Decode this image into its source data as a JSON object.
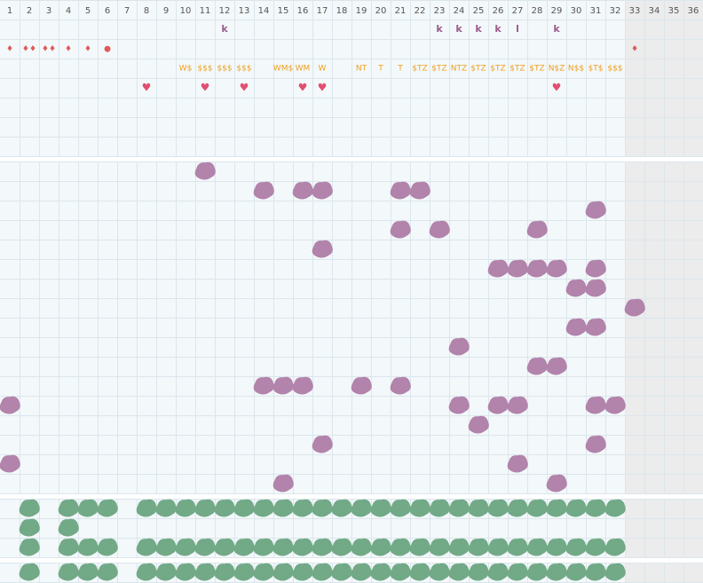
{
  "column_numbers": [
    1,
    2,
    3,
    4,
    5,
    6,
    7,
    8,
    9,
    10,
    11,
    12,
    13,
    14,
    15,
    16,
    17,
    18,
    19,
    20,
    21,
    22,
    23,
    24,
    25,
    26,
    27,
    28,
    29,
    30,
    31,
    32,
    33,
    34,
    35,
    36
  ],
  "top_panel": {
    "letters": [
      {
        "column": 12,
        "text": "k"
      },
      {
        "column": 23,
        "text": "k"
      },
      {
        "column": 24,
        "text": "k"
      },
      {
        "column": 25,
        "text": "k"
      },
      {
        "column": 26,
        "text": "k"
      },
      {
        "column": 27,
        "text": "l"
      },
      {
        "column": 29,
        "text": "k"
      }
    ],
    "drops": [
      {
        "column": 1,
        "text": "♦"
      },
      {
        "column": 2,
        "text": "♦♦"
      },
      {
        "column": 3,
        "text": "♦♦"
      },
      {
        "column": 4,
        "text": "♦"
      },
      {
        "column": 5,
        "text": "♦"
      },
      {
        "column": 6,
        "text": "●"
      },
      {
        "column": 33,
        "text": "♦"
      }
    ],
    "codes": [
      {
        "column": 10,
        "text": "W$"
      },
      {
        "column": 11,
        "text": "$$$"
      },
      {
        "column": 12,
        "text": "$$$"
      },
      {
        "column": 13,
        "text": "$$$"
      },
      {
        "column": 15,
        "text": "WM$"
      },
      {
        "column": 16,
        "text": "WM"
      },
      {
        "column": 17,
        "text": "W"
      },
      {
        "column": 19,
        "text": "NT"
      },
      {
        "column": 20,
        "text": "T"
      },
      {
        "column": 21,
        "text": "T"
      },
      {
        "column": 22,
        "text": "$TZ"
      },
      {
        "column": 23,
        "text": "$TZ"
      },
      {
        "column": 24,
        "text": "NTZ"
      },
      {
        "column": 25,
        "text": "$TZ"
      },
      {
        "column": 26,
        "text": "$TZ"
      },
      {
        "column": 27,
        "text": "$TZ"
      },
      {
        "column": 28,
        "text": "$TZ"
      },
      {
        "column": 29,
        "text": "N$Z"
      },
      {
        "column": 30,
        "text": "N$$"
      },
      {
        "column": 31,
        "text": "$T$"
      },
      {
        "column": 32,
        "text": "$$$"
      }
    ],
    "hearts": {
      "symbol": "♥",
      "columns": [
        8,
        11,
        13,
        16,
        17,
        29
      ]
    }
  },
  "purple_rows": [
    [
      11
    ],
    [
      14,
      16,
      17,
      21,
      22
    ],
    [
      31
    ],
    [
      21,
      23,
      28
    ],
    [
      17
    ],
    [
      26,
      27,
      28,
      29,
      31
    ],
    [
      30,
      31
    ],
    [
      33
    ],
    [
      30,
      31
    ],
    [
      24
    ],
    [
      28,
      29
    ],
    [
      14,
      15,
      16,
      19,
      21
    ],
    [
      1,
      24,
      26,
      27,
      31,
      32
    ],
    [
      25
    ],
    [
      17,
      31
    ],
    [
      1,
      27
    ],
    [
      15,
      29
    ]
  ],
  "green_rows": [
    [
      2,
      4,
      5,
      6,
      8,
      9,
      10,
      11,
      12,
      13,
      14,
      15,
      16,
      17,
      18,
      19,
      20,
      21,
      22,
      23,
      24,
      25,
      26,
      27,
      28,
      29,
      30,
      31,
      32
    ],
    [
      2,
      4
    ],
    [
      2,
      4,
      5,
      6,
      8,
      9,
      10,
      11,
      12,
      13,
      14,
      15,
      16,
      17,
      18,
      19,
      20,
      21,
      22,
      23,
      24,
      25,
      26,
      27,
      28,
      29,
      30,
      31,
      32
    ]
  ],
  "green_rows_bottom": [
    [
      2,
      4,
      5,
      6,
      8,
      9,
      10,
      11,
      12,
      13,
      14,
      15,
      16,
      17,
      18,
      19,
      20,
      21,
      22,
      23,
      24,
      25,
      26,
      27,
      28,
      29,
      30,
      31,
      32
    ]
  ]
}
